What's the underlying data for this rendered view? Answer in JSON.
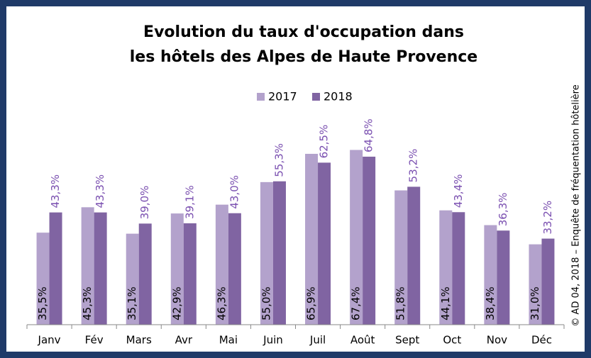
{
  "chart_data": {
    "type": "bar",
    "title": [
      "Evolution du taux d'occupation dans",
      "les hôtels des Alpes de Haute Provence"
    ],
    "source": "© AD 04, 2018 – Enquête de fréquentation hôtelière",
    "categories": [
      "Janv",
      "Fév",
      "Mars",
      "Avr",
      "Mai",
      "Juin",
      "Juil",
      "Août",
      "Sept",
      "Oct",
      "Nov",
      "Déc"
    ],
    "series": [
      {
        "name": "2017",
        "color": "#b3a2cc",
        "values": [
          35.5,
          45.3,
          35.1,
          42.9,
          46.3,
          55.0,
          65.9,
          67.4,
          51.8,
          44.1,
          38.4,
          31.0
        ],
        "value_labels": [
          "35,5%",
          "45,3%",
          "35,1%",
          "42,9%",
          "46,3%",
          "55,0%",
          "65,9%",
          "67,4%",
          "51,8%",
          "44,1%",
          "38,4%",
          "31,0%"
        ]
      },
      {
        "name": "2018",
        "color": "#8064a2",
        "values": [
          43.3,
          43.3,
          39.0,
          39.1,
          43.0,
          55.3,
          62.5,
          64.8,
          53.2,
          43.4,
          36.3,
          33.2
        ],
        "value_labels": [
          "43,3%",
          "43,3%",
          "39,0%",
          "39,1%",
          "43,0%",
          "55,3%",
          "62,5%",
          "64,8%",
          "53,2%",
          "43,4%",
          "36,3%",
          "33,2%"
        ]
      }
    ],
    "ylim": [
      0,
      70
    ]
  }
}
